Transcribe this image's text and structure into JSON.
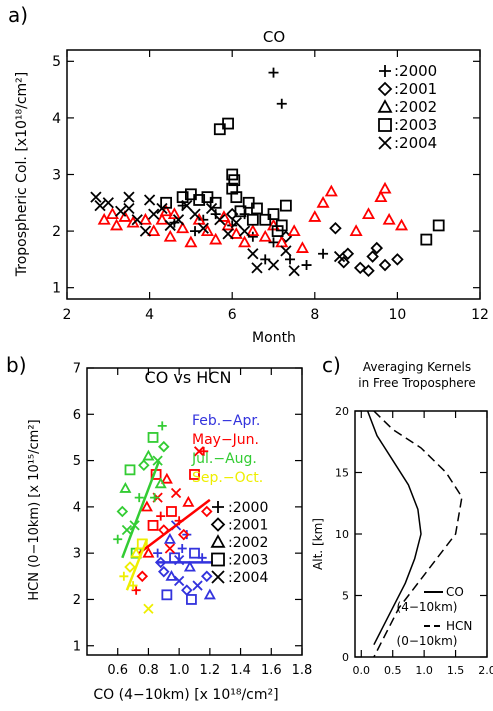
{
  "panels": {
    "a": {
      "label": "a)",
      "title": "CO",
      "xlabel": "Month",
      "ylabel": "Tropospheric Col. [x10¹⁸/cm²]",
      "xlim": [
        2,
        12
      ],
      "ylim": [
        0.8,
        5.2
      ],
      "xticks": [
        "2",
        "4",
        "6",
        "8",
        "10",
        "12"
      ],
      "yticks": [
        "1",
        "2",
        "3",
        "4",
        "5"
      ],
      "legend": [
        ":2000",
        ":2001",
        ":2002",
        ":2003",
        ":2004"
      ]
    },
    "b": {
      "label": "b)",
      "title": "CO vs HCN",
      "xlabel": "CO (4−10km) [x 10¹⁸/cm²]",
      "ylabel": "HCN (0−10km) [x 10¹⁵/cm²]",
      "xlim": [
        0.4,
        1.8
      ],
      "ylim": [
        0.8,
        7.0
      ],
      "xticks": [
        "0.6",
        "0.8",
        "1.0",
        "1.2",
        "1.4",
        "1.6",
        "1.8"
      ],
      "yticks": [
        "1",
        "2",
        "3",
        "4",
        "5",
        "6",
        "7"
      ],
      "season_legend": [
        "Feb.−Apr.",
        "May−Jun.",
        "Jul.−Aug.",
        "Sep.−Oct."
      ],
      "year_legend": [
        ":2000",
        ":2001",
        ":2002",
        ":2003",
        ":2004"
      ]
    },
    "c": {
      "label": "c)",
      "title_line1": "Averaging Kernels",
      "title_line2": "in Free Troposphere",
      "ylabel": "Alt. [km]",
      "xlim": [
        -0.1,
        2.0
      ],
      "ylim": [
        0,
        20
      ],
      "xticks": [
        "0.0",
        "0.5",
        "1.0",
        "1.5",
        "2.0"
      ],
      "yticks": [
        "0",
        "5",
        "10",
        "15",
        "20"
      ],
      "legend": [
        {
          "label": "CO",
          "sub": "(4−10km)",
          "style": "solid"
        },
        {
          "label": "HCN",
          "sub": "(0−10km)",
          "style": "dashed"
        }
      ]
    }
  },
  "colors": {
    "black": "#000000",
    "red": "#ff0000",
    "blue": "#3333dd",
    "green": "#33cc33",
    "yellow": "#eeee00"
  },
  "chart_data": [
    {
      "panel": "a",
      "type": "scatter",
      "series": [
        {
          "name": "2000",
          "marker": "plus",
          "color": "#000000",
          "points": [
            [
              7.0,
              4.8
            ],
            [
              7.2,
              4.25
            ],
            [
              4.8,
              2.45
            ],
            [
              5.3,
              2.2
            ],
            [
              5.6,
              2.3
            ],
            [
              6.0,
              2.1
            ],
            [
              6.5,
              1.9
            ],
            [
              6.8,
              1.5
            ],
            [
              7.0,
              1.8
            ],
            [
              7.4,
              1.5
            ],
            [
              7.8,
              1.4
            ],
            [
              8.2,
              1.6
            ],
            [
              5.1,
              2.0
            ],
            [
              4.6,
              2.15
            ],
            [
              6.3,
              2.3
            ]
          ]
        },
        {
          "name": "2001",
          "marker": "diamond",
          "color": "#000000",
          "points": [
            [
              8.5,
              2.05
            ],
            [
              8.8,
              1.6
            ],
            [
              9.1,
              1.35
            ],
            [
              9.4,
              1.55
            ],
            [
              9.5,
              1.7
            ],
            [
              9.7,
              1.4
            ],
            [
              10.0,
              1.5
            ],
            [
              8.7,
              1.45
            ],
            [
              9.3,
              1.3
            ],
            [
              7.3,
              1.9
            ],
            [
              6.0,
              2.3
            ]
          ]
        },
        {
          "name": "2002",
          "marker": "triangle",
          "color": "#ff0000",
          "points": [
            [
              2.9,
              2.2
            ],
            [
              3.1,
              2.3
            ],
            [
              3.2,
              2.1
            ],
            [
              3.4,
              2.25
            ],
            [
              3.6,
              2.15
            ],
            [
              3.9,
              2.2
            ],
            [
              4.1,
              2.0
            ],
            [
              4.3,
              2.2
            ],
            [
              4.5,
              1.9
            ],
            [
              4.6,
              2.3
            ],
            [
              4.8,
              2.05
            ],
            [
              5.0,
              1.8
            ],
            [
              5.2,
              2.2
            ],
            [
              5.4,
              2.0
            ],
            [
              5.6,
              1.85
            ],
            [
              5.9,
              2.1
            ],
            [
              6.1,
              1.95
            ],
            [
              6.3,
              1.8
            ],
            [
              6.5,
              2.0
            ],
            [
              6.8,
              1.9
            ],
            [
              7.0,
              2.1
            ],
            [
              7.2,
              1.8
            ],
            [
              7.5,
              2.0
            ],
            [
              7.7,
              1.7
            ],
            [
              8.0,
              2.25
            ],
            [
              8.2,
              2.5
            ],
            [
              8.4,
              2.7
            ],
            [
              9.0,
              2.0
            ],
            [
              9.3,
              2.3
            ],
            [
              9.6,
              2.6
            ],
            [
              9.7,
              2.75
            ],
            [
              9.8,
              2.2
            ],
            [
              10.1,
              2.1
            ],
            [
              4.4,
              2.35
            ],
            [
              5.8,
              2.25
            ]
          ]
        },
        {
          "name": "2003",
          "marker": "square",
          "color": "#000000",
          "points": [
            [
              5.7,
              3.8
            ],
            [
              5.9,
              3.9
            ],
            [
              6.0,
              3.0
            ],
            [
              6.05,
              2.9
            ],
            [
              6.1,
              2.6
            ],
            [
              6.4,
              2.5
            ],
            [
              4.8,
              2.6
            ],
            [
              5.0,
              2.65
            ],
            [
              5.2,
              2.55
            ],
            [
              5.4,
              2.6
            ],
            [
              5.6,
              2.5
            ],
            [
              6.6,
              2.4
            ],
            [
              6.8,
              2.2
            ],
            [
              7.0,
              2.3
            ],
            [
              7.2,
              2.1
            ],
            [
              7.3,
              2.45
            ],
            [
              6.5,
              2.2
            ],
            [
              6.2,
              2.35
            ],
            [
              10.7,
              1.85
            ],
            [
              11.0,
              2.1
            ],
            [
              4.4,
              2.5
            ],
            [
              6.0,
              2.75
            ],
            [
              7.1,
              2.0
            ]
          ]
        },
        {
          "name": "2004",
          "marker": "x",
          "color": "#000000",
          "points": [
            [
              2.7,
              2.6
            ],
            [
              2.8,
              2.45
            ],
            [
              3.0,
              2.5
            ],
            [
              3.3,
              2.35
            ],
            [
              3.5,
              2.4
            ],
            [
              3.7,
              2.2
            ],
            [
              3.9,
              2.0
            ],
            [
              4.1,
              2.3
            ],
            [
              4.3,
              2.4
            ],
            [
              4.5,
              2.1
            ],
            [
              4.7,
              2.2
            ],
            [
              4.9,
              2.45
            ],
            [
              5.1,
              2.3
            ],
            [
              5.3,
              2.05
            ],
            [
              5.5,
              2.4
            ],
            [
              5.7,
              2.2
            ],
            [
              5.9,
              1.95
            ],
            [
              6.1,
              2.15
            ],
            [
              6.3,
              2.0
            ],
            [
              6.5,
              1.6
            ],
            [
              6.6,
              1.35
            ],
            [
              7.0,
              1.4
            ],
            [
              7.3,
              1.65
            ],
            [
              7.5,
              1.3
            ],
            [
              8.6,
              1.55
            ],
            [
              4.0,
              2.55
            ],
            [
              3.5,
              2.6
            ]
          ]
        }
      ]
    },
    {
      "panel": "b",
      "type": "scatter",
      "series": [
        {
          "name": "Feb.−Apr.",
          "color": "#3333dd",
          "points": [
            [
              0.86,
              3.0
            ],
            [
              0.9,
              2.6
            ],
            [
              0.94,
              3.3
            ],
            [
              0.97,
              2.9
            ],
            [
              1.0,
              2.4
            ],
            [
              1.02,
              3.1
            ],
            [
              1.05,
              2.2
            ],
            [
              1.07,
              2.7
            ],
            [
              1.1,
              3.0
            ],
            [
              1.12,
              2.3
            ],
            [
              1.15,
              2.9
            ],
            [
              1.18,
              2.5
            ],
            [
              1.2,
              2.1
            ],
            [
              0.92,
              2.1
            ],
            [
              0.98,
              3.6
            ],
            [
              1.05,
              3.4
            ],
            [
              0.88,
              2.8
            ],
            [
              0.95,
              2.5
            ],
            [
              1.08,
              2.0
            ],
            [
              1.0,
              2.85
            ]
          ],
          "fit": [
            [
              0.85,
              2.8
            ],
            [
              1.22,
              2.8
            ]
          ]
        },
        {
          "name": "May−Jun.",
          "color": "#ff0000",
          "points": [
            [
              0.72,
              2.2
            ],
            [
              0.76,
              2.5
            ],
            [
              0.8,
              3.0
            ],
            [
              0.83,
              3.6
            ],
            [
              0.86,
              4.2
            ],
            [
              0.88,
              3.8
            ],
            [
              0.9,
              3.5
            ],
            [
              0.92,
              4.6
            ],
            [
              0.95,
              3.9
            ],
            [
              0.98,
              4.3
            ],
            [
              1.0,
              3.7
            ],
            [
              1.03,
              3.4
            ],
            [
              1.06,
              4.1
            ],
            [
              1.1,
              4.7
            ],
            [
              1.13,
              5.2
            ],
            [
              1.16,
              5.2
            ],
            [
              1.18,
              3.9
            ],
            [
              0.79,
              4.0
            ],
            [
              0.85,
              4.7
            ],
            [
              0.94,
              3.1
            ]
          ],
          "fit": [
            [
              0.74,
              3.0
            ],
            [
              1.2,
              4.15
            ]
          ]
        },
        {
          "name": "Jul.−Aug.",
          "color": "#33cc33",
          "points": [
            [
              0.6,
              3.3
            ],
            [
              0.63,
              3.9
            ],
            [
              0.65,
              4.4
            ],
            [
              0.68,
              4.8
            ],
            [
              0.71,
              3.6
            ],
            [
              0.74,
              4.2
            ],
            [
              0.77,
              4.9
            ],
            [
              0.8,
              5.1
            ],
            [
              0.83,
              5.5
            ],
            [
              0.86,
              5.0
            ],
            [
              0.89,
              5.75
            ],
            [
              0.9,
              5.3
            ],
            [
              0.88,
              4.5
            ],
            [
              0.72,
              3.0
            ],
            [
              0.66,
              3.5
            ],
            [
              0.84,
              4.2
            ]
          ],
          "fit": [
            [
              0.63,
              2.9
            ],
            [
              0.87,
              5.0
            ]
          ]
        },
        {
          "name": "Sep.−Oct.",
          "color": "#eeee00",
          "points": [
            [
              0.64,
              2.5
            ],
            [
              0.68,
              2.7
            ],
            [
              0.72,
              3.0
            ],
            [
              0.76,
              3.2
            ],
            [
              0.8,
              1.8
            ],
            [
              0.7,
              2.3
            ]
          ],
          "fit": [
            [
              0.66,
              2.2
            ],
            [
              0.79,
              3.3
            ]
          ]
        }
      ]
    },
    {
      "panel": "c",
      "type": "line",
      "series": [
        {
          "name": "CO",
          "style": "solid",
          "points": [
            [
              0.1,
              20
            ],
            [
              0.25,
              18
            ],
            [
              0.5,
              16
            ],
            [
              0.75,
              14
            ],
            [
              0.9,
              12
            ],
            [
              0.95,
              10
            ],
            [
              0.85,
              8
            ],
            [
              0.7,
              6
            ],
            [
              0.5,
              4
            ],
            [
              0.2,
              1
            ]
          ]
        },
        {
          "name": "HCN",
          "style": "dashed",
          "points": [
            [
              0.2,
              20
            ],
            [
              0.5,
              18.5
            ],
            [
              0.95,
              17
            ],
            [
              1.35,
              15
            ],
            [
              1.6,
              13
            ],
            [
              1.5,
              10
            ],
            [
              1.2,
              8
            ],
            [
              0.9,
              6
            ],
            [
              0.6,
              4
            ],
            [
              0.2,
              0
            ]
          ]
        }
      ]
    }
  ]
}
